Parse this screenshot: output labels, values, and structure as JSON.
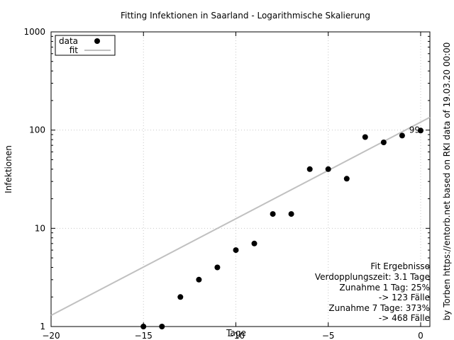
{
  "chart_data": {
    "type": "scatter",
    "title": "Fitting Infektionen in Saarland - Logarithmische Skalierung",
    "xlabel": "Tage",
    "ylabel": "Infektionen",
    "credit": "by Torben https://entorb.net based on RKI data of 19.03.20 00:00",
    "xlim": [
      -20,
      0.5
    ],
    "ylim": [
      1,
      1000
    ],
    "yscale": "log",
    "grid": true,
    "legend_position": "top-left",
    "x_ticks": [
      -20,
      -15,
      -10,
      -5,
      0
    ],
    "x_tick_labels": [
      "−20",
      "−15",
      "−10",
      "−5",
      "0"
    ],
    "y_ticks": [
      1,
      10,
      100,
      1000
    ],
    "y_tick_labels": [
      "1",
      "10",
      "100",
      "1000"
    ],
    "series": [
      {
        "name": "data",
        "kind": "points",
        "color": "#000000",
        "x": [
          -15,
          -14,
          -13,
          -12,
          -11,
          -10,
          -9,
          -8,
          -7,
          -6,
          -5,
          -4,
          -3,
          -2,
          -1,
          0
        ],
        "y": [
          1,
          1,
          2,
          3,
          4,
          6,
          7,
          14,
          14,
          40,
          40,
          32,
          85,
          75,
          88,
          99
        ]
      },
      {
        "name": "fit",
        "kind": "line",
        "color": "#c0c0c0",
        "x": [
          -20,
          0.5
        ],
        "y": [
          1.3,
          135
        ]
      }
    ],
    "point_label": {
      "x": 0,
      "y": 99,
      "text": "99"
    },
    "annotation_lines": [
      "Fit Ergebnisse",
      "Verdopplungszeit: 3.1 Tage",
      "Zunahme 1 Tag: 25%",
      "-> 123 Fälle",
      "Zunahme 7 Tage: 373%",
      "-> 468 Fälle"
    ]
  }
}
